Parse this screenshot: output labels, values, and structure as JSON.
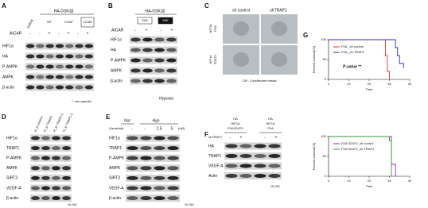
{
  "panel_a": {
    "label": "A",
    "construct": "HA-GSK3β",
    "control": "pcDNA",
    "mutants": [
      "WT",
      "Y216F",
      "Y216E"
    ],
    "treatment": "AICAR",
    "lanes": [
      "-",
      "-",
      "+",
      "-",
      "+",
      "-",
      "+"
    ],
    "rows": [
      "HIF1α",
      "HA",
      "P-AMPK",
      "AMPK",
      "β-actin"
    ],
    "note": "*: non-specific"
  },
  "panel_b": {
    "label": "B",
    "construct": "HA-GSK3β",
    "mutants": [
      "S9A",
      "S9E"
    ],
    "treatment": "AICAR",
    "lanes": [
      "-",
      "+",
      "-",
      "+"
    ],
    "rows": [
      "HIF1α",
      "HA",
      "P-AMPK",
      "AMPK",
      "β-actin"
    ],
    "condition": "Hypoxia"
  },
  "panel_c": {
    "label": "C",
    "columns": [
      "sh control",
      "shTRAP1"
    ],
    "rows": [
      [
        "HIF1α",
        "P2A"
      ],
      [
        "HIF1α",
        "S2ATV"
      ]
    ],
    "note": "CM : Conditioned media"
  },
  "panel_d": {
    "label": "D",
    "columns": [
      "H_si control",
      "H_si TRAP1",
      "H_si TRAP1-1",
      "H_si TRAP1-2"
    ],
    "rows": [
      "HIF1α",
      "TRAP1",
      "P-AMPK",
      "AMPK",
      "SIRT3",
      "VEGF-A",
      "β-actin"
    ],
    "cell_line": "GL261"
  },
  "panel_e": {
    "label": "E",
    "conditions": [
      "Nor",
      "Hyp"
    ],
    "treatment": "Gamitrinib",
    "lanes": [
      "-",
      "-",
      "2.5",
      "5"
    ],
    "unit": "(uM)",
    "rows": [
      "HIF1α",
      "TRAP1",
      "P-AMPK",
      "AMPK",
      "SIRT3",
      "VEGF-A",
      "β-actin"
    ],
    "cell_line": "GL261"
  },
  "panel_f": {
    "label": "F",
    "groups": [
      [
        "HA",
        "HIF1A",
        "P2AS2ATV"
      ],
      [
        "HA",
        "HIF1A",
        "P2A"
      ]
    ],
    "treatment": "shTRAP1",
    "lanes": [
      "-",
      "+",
      "-",
      "+"
    ],
    "rows": [
      "HA",
      "TRAP1",
      "VEGF-A",
      "Actin"
    ],
    "cell_line": "GL261"
  },
  "panel_g": {
    "label": "G",
    "charts": [
      {
        "type": "step",
        "ylabel": "Percent survival(%)",
        "xlabel": "Time",
        "xlim": [
          0,
          40
        ],
        "ylim": [
          0,
          100
        ],
        "xticks": [
          0,
          10,
          20,
          30,
          40
        ],
        "yticks": [
          0,
          50,
          100
        ],
        "annotation": "P-value **",
        "series": [
          {
            "name": "P2A _sh control",
            "color": "#e0302a",
            "x": [
              0,
              28,
              29,
              30
            ],
            "values": [
              100,
              60,
              20,
              0
            ]
          },
          {
            "name": "P2A _sh TRAP1",
            "color": "#2b2bb5",
            "x": [
              0,
              33,
              34,
              35,
              37
            ],
            "values": [
              100,
              80,
              60,
              40,
              30
            ]
          }
        ]
      },
      {
        "type": "step",
        "ylabel": "Percent survival(%)",
        "xlabel": "Time",
        "xlim": [
          0,
          40
        ],
        "ylim": [
          0,
          100
        ],
        "xticks": [
          0,
          10,
          20,
          30,
          40
        ],
        "yticks": [
          0,
          50,
          100
        ],
        "series": [
          {
            "name": "P2A S2ATV_sh control",
            "color": "#a020c0",
            "x": [
              0,
              31,
              33
            ],
            "values": [
              100,
              30,
              0
            ]
          },
          {
            "name": "P2A S2ATV_sh TRAP1",
            "color": "#2aa02a",
            "x": [
              0,
              30,
              31
            ],
            "values": [
              100,
              90,
              0
            ]
          }
        ]
      }
    ]
  }
}
